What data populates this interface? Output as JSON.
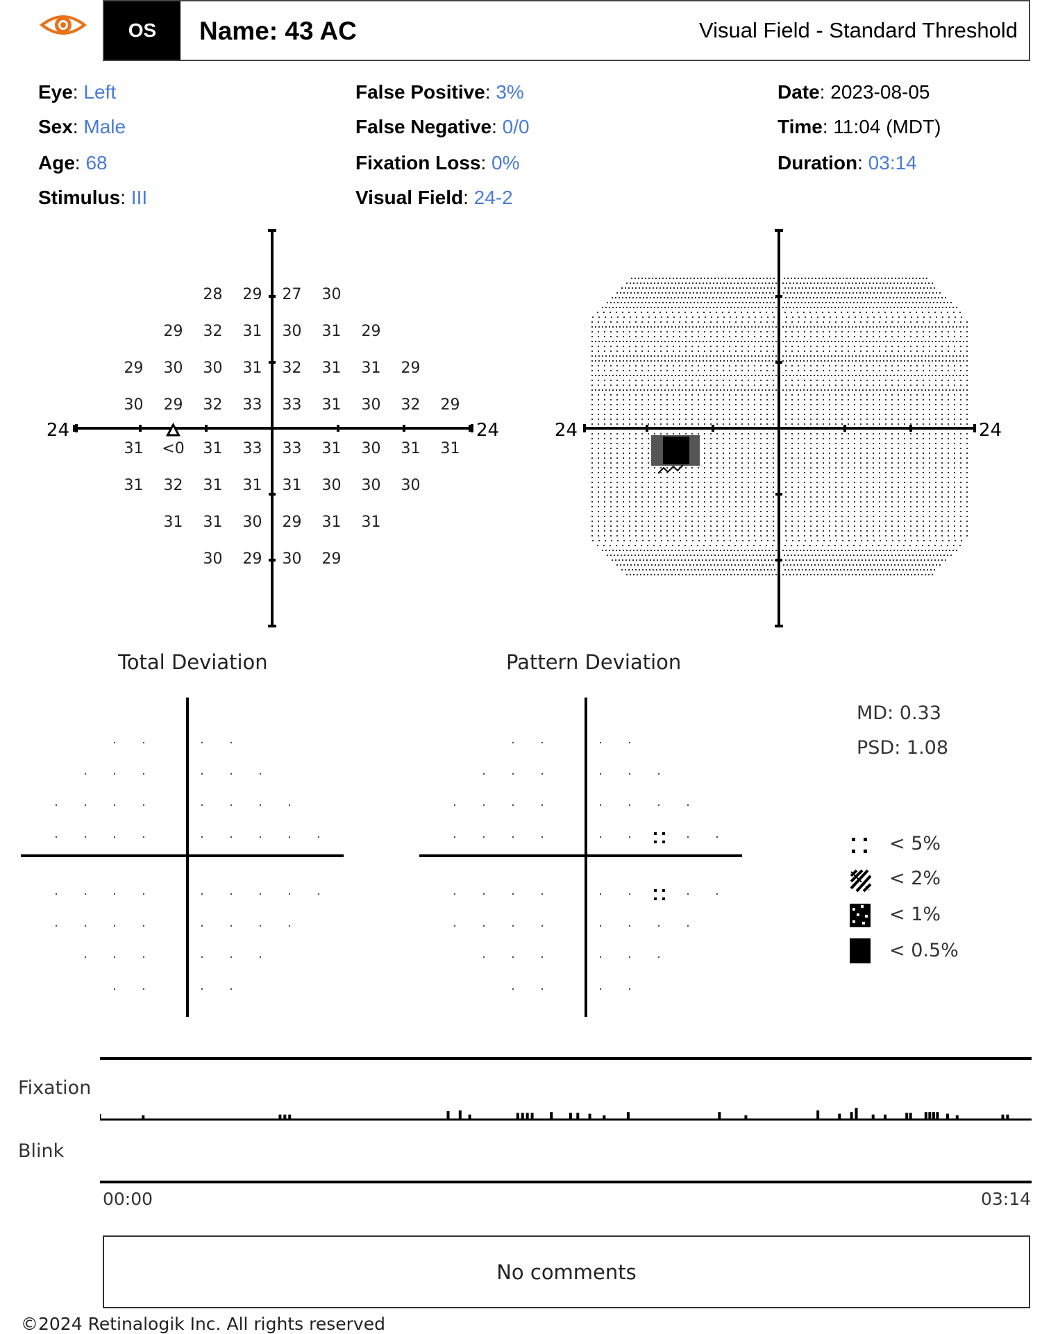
{
  "header": {
    "eye_badge": "OS",
    "name": "Name: 43 AC",
    "test_type": "Visual Field - Standard Threshold",
    "logo_icon": "eye-icon",
    "logo_color": "#e8731a"
  },
  "patient_info": {
    "eye": {
      "label": "Eye",
      "value": "Left"
    },
    "sex": {
      "label": "Sex",
      "value": "Male"
    },
    "age": {
      "label": "Age",
      "value": "68"
    },
    "stimulus": {
      "label": "Stimulus",
      "value": "III"
    },
    "false_positive": {
      "label": "False Positive",
      "value": "3%"
    },
    "false_negative": {
      "label": "False Negative",
      "value": "0/0"
    },
    "fixation_loss": {
      "label": "Fixation Loss",
      "value": "0%"
    },
    "visual_field": {
      "label": "Visual Field",
      "value": "24-2"
    },
    "date": {
      "label": "Date",
      "value": "2023-08-05"
    },
    "time": {
      "label": "Time",
      "value": "11:04 (MDT)"
    },
    "duration": {
      "label": "Duration",
      "value": "03:14"
    }
  },
  "threshold_plot": {
    "axis_label_left": "24",
    "axis_label_right": "24",
    "rows": [
      [
        "",
        "",
        "28",
        "29",
        "27",
        "30",
        "",
        "",
        ""
      ],
      [
        "",
        "29",
        "32",
        "31",
        "30",
        "31",
        "29",
        "",
        ""
      ],
      [
        "29",
        "30",
        "30",
        "31",
        "32",
        "31",
        "31",
        "29",
        ""
      ],
      [
        "30",
        "29",
        "32",
        "33",
        "33",
        "31",
        "30",
        "32",
        "29"
      ],
      [
        "31",
        "<0",
        "31",
        "33",
        "33",
        "31",
        "30",
        "31",
        "31"
      ],
      [
        "31",
        "32",
        "31",
        "31",
        "31",
        "30",
        "30",
        "30",
        ""
      ],
      [
        "",
        "31",
        "31",
        "30",
        "29",
        "31",
        "31",
        "",
        ""
      ],
      [
        "",
        "",
        "30",
        "29",
        "30",
        "29",
        "",
        "",
        ""
      ]
    ],
    "blind_spot_marker": "triangle"
  },
  "grayscale_plot": {
    "axis_label_left": "24",
    "axis_label_right": "24"
  },
  "total_deviation": {
    "title": "Total Deviation",
    "flags": []
  },
  "pattern_deviation": {
    "title": "Pattern Deviation",
    "flags": [
      {
        "row": 3,
        "col": 6,
        "level": "<5%"
      },
      {
        "row": 4,
        "col": 6,
        "level": "<5%"
      }
    ]
  },
  "indices": {
    "md": "MD: 0.33",
    "psd": "PSD: 1.08"
  },
  "legend": [
    {
      "symbol": "dots-4",
      "label": "< 5%"
    },
    {
      "symbol": "hatch",
      "label": "< 2%"
    },
    {
      "symbol": "checker",
      "label": "< 1%"
    },
    {
      "symbol": "solid",
      "label": "< 0.5%"
    }
  ],
  "fixation_monitor": {
    "fixation_label": "Fixation",
    "blink_label": "Blink",
    "start_time": "00:00",
    "end_time": "03:14",
    "total_seconds": 194,
    "events": [
      {
        "t": 9,
        "h": 0.25
      },
      {
        "t": 37.5,
        "h": 0.3
      },
      {
        "t": 38.5,
        "h": 0.3
      },
      {
        "t": 39.5,
        "h": 0.3
      },
      {
        "t": 72.5,
        "h": 0.5
      },
      {
        "t": 75,
        "h": 0.55
      },
      {
        "t": 77,
        "h": 0.3
      },
      {
        "t": 87,
        "h": 0.4
      },
      {
        "t": 88,
        "h": 0.4
      },
      {
        "t": 89,
        "h": 0.4
      },
      {
        "t": 90,
        "h": 0.4
      },
      {
        "t": 94,
        "h": 0.45
      },
      {
        "t": 98,
        "h": 0.4
      },
      {
        "t": 99.5,
        "h": 0.4
      },
      {
        "t": 102,
        "h": 0.35
      },
      {
        "t": 105,
        "h": 0.25
      },
      {
        "t": 110,
        "h": 0.45
      },
      {
        "t": 129,
        "h": 0.45
      },
      {
        "t": 134.5,
        "h": 0.25
      },
      {
        "t": 149.5,
        "h": 0.55
      },
      {
        "t": 154,
        "h": 0.35
      },
      {
        "t": 156.5,
        "h": 0.45
      },
      {
        "t": 157.5,
        "h": 0.7
      },
      {
        "t": 161,
        "h": 0.3
      },
      {
        "t": 163.5,
        "h": 0.3
      },
      {
        "t": 168,
        "h": 0.4
      },
      {
        "t": 168.8,
        "h": 0.4
      },
      {
        "t": 172,
        "h": 0.45
      },
      {
        "t": 172.8,
        "h": 0.45
      },
      {
        "t": 173.6,
        "h": 0.45
      },
      {
        "t": 174.4,
        "h": 0.45
      },
      {
        "t": 176.5,
        "h": 0.35
      },
      {
        "t": 178.5,
        "h": 0.25
      },
      {
        "t": 188,
        "h": 0.3
      },
      {
        "t": 189,
        "h": 0.3
      }
    ]
  },
  "comments": "No comments",
  "footer": "©2024 Retinalogik Inc. All rights reserved"
}
